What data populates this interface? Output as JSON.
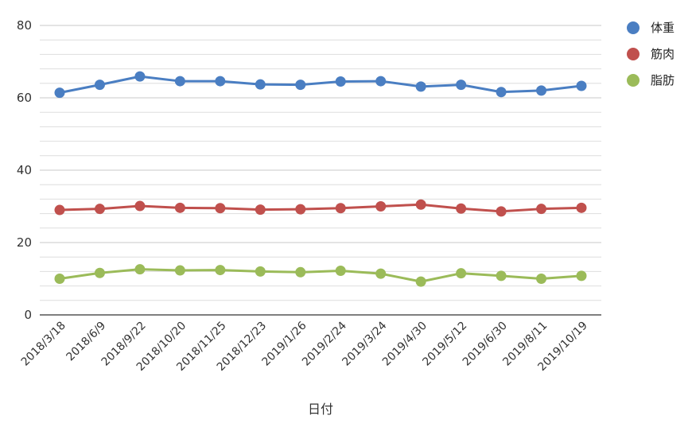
{
  "chart_data": {
    "type": "line",
    "xlabel": "日付",
    "ylabel": "",
    "ylim": [
      0,
      80
    ],
    "yticks": [
      0,
      20,
      40,
      60,
      80
    ],
    "grid": true,
    "legend_position": "top-right",
    "categories": [
      "2018/3/18",
      "2018/6/9",
      "2018/9/22",
      "2018/10/20",
      "2018/11/25",
      "2018/12/23",
      "2019/1/26",
      "2019/2/24",
      "2019/3/24",
      "2019/4/30",
      "2019/5/12",
      "2019/6/30",
      "2019/8/11",
      "2019/10/19"
    ],
    "series": [
      {
        "name": "体重",
        "color": "#4a7ec2",
        "values": [
          61.4,
          63.6,
          65.9,
          64.6,
          64.6,
          63.7,
          63.6,
          64.5,
          64.6,
          63.1,
          63.6,
          61.6,
          62.0,
          63.3
        ]
      },
      {
        "name": "筋肉",
        "color": "#c0504d",
        "values": [
          29.0,
          29.3,
          30.1,
          29.6,
          29.5,
          29.1,
          29.2,
          29.5,
          30.0,
          30.5,
          29.4,
          28.6,
          29.3,
          29.6
        ]
      },
      {
        "name": "脂肪",
        "color": "#9bbb59",
        "values": [
          10.0,
          11.6,
          12.6,
          12.3,
          12.4,
          12.0,
          11.8,
          12.2,
          11.4,
          9.2,
          11.5,
          10.8,
          10.0,
          10.8
        ]
      }
    ]
  }
}
